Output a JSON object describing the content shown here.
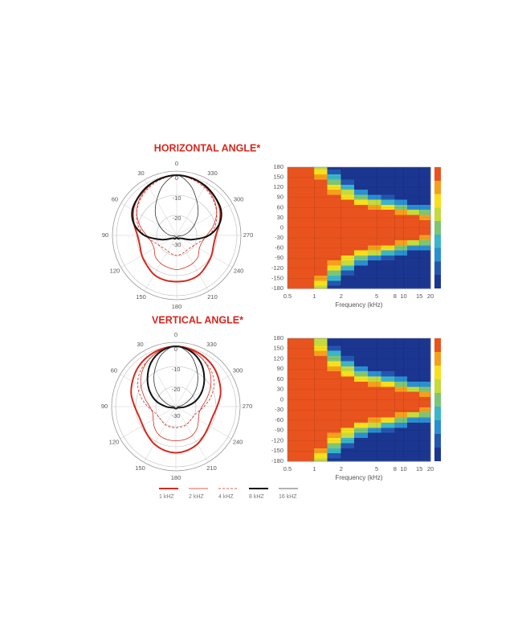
{
  "legend": [
    {
      "name": "1 kHZ",
      "color": "#d42a1e",
      "width": 2,
      "dash": false
    },
    {
      "name": "2 kHZ",
      "color": "#d42a1e",
      "width": 0.8,
      "dash": false
    },
    {
      "name": "4 kHZ",
      "color": "#d42a1e",
      "width": 0.8,
      "dash": true
    },
    {
      "name": "8 kHZ",
      "color": "#111111",
      "width": 2,
      "dash": false
    },
    {
      "name": "16 kHZ",
      "color": "#333333",
      "width": 0.8,
      "dash": false
    }
  ],
  "colorscale": {
    "levels": [
      0,
      -3,
      -6,
      -9,
      -12,
      -15,
      -18,
      -21,
      -24
    ],
    "colors": [
      "#e9531e",
      "#f5a01c",
      "#f8df1c",
      "#c5da3c",
      "#7cc576",
      "#3bb5c7",
      "#2a8fd0",
      "#2356b0",
      "#1b3690"
    ]
  },
  "chart_data": [
    {
      "type": "polar",
      "title": "HORIZONTAL ANGLE*",
      "angles": [
        0,
        15,
        30,
        45,
        60,
        75,
        90,
        105,
        120,
        135,
        150,
        165,
        180,
        195,
        210,
        225,
        240,
        255,
        270,
        285,
        300,
        315,
        330,
        345
      ],
      "theta_ticks": [
        0,
        30,
        60,
        90,
        120,
        150,
        180,
        210,
        240,
        270,
        300,
        330
      ],
      "rlim": [
        -30,
        2
      ],
      "rticks": [
        0,
        -10,
        -20,
        -30
      ],
      "series": [
        {
          "values": [
            0,
            -0.5,
            -1.5,
            -3,
            -5,
            -8,
            -10.5,
            -11,
            -10,
            -9,
            -7.5,
            -7,
            -7,
            -7,
            -7.5,
            -9,
            -10,
            -11,
            -10.5,
            -8,
            -5,
            -3,
            -1.5,
            -0.5
          ]
        },
        {
          "values": [
            0,
            -0.5,
            -2,
            -4,
            -7,
            -11,
            -15,
            -17,
            -17,
            -15,
            -14,
            -13.5,
            -13,
            -13.5,
            -14,
            -15,
            -17,
            -17,
            -15,
            -11,
            -7,
            -4,
            -2,
            -0.5
          ]
        },
        {
          "values": [
            0,
            -1,
            -2.5,
            -4.5,
            -7,
            -10,
            -14,
            -18,
            -20,
            -21,
            -21,
            -20.5,
            -20,
            -20.5,
            -21,
            -21,
            -20,
            -18,
            -14,
            -10,
            -7,
            -4.5,
            -2.5,
            -1
          ]
        },
        {
          "values": [
            0,
            -0.5,
            -1.5,
            -3,
            -4.5,
            -8,
            -14,
            -22,
            -27,
            -28,
            -28,
            -28.5,
            -29,
            -28.5,
            -28,
            -28,
            -27,
            -22,
            -14,
            -8,
            -4.5,
            -3,
            -1.5,
            -0.5
          ]
        },
        {
          "values": [
            0,
            -4,
            -10,
            -15,
            -20,
            -24,
            -27,
            -29,
            -29,
            -29,
            -29,
            -29,
            -29,
            -29,
            -29,
            -29,
            -29,
            -29,
            -27,
            -24,
            -20,
            -15,
            -10,
            -4
          ]
        }
      ]
    },
    {
      "type": "heatmap",
      "x_label": "Frequency (kHz)",
      "xlim": [
        0.5,
        20
      ],
      "xticks": [
        0.5,
        1,
        2,
        5,
        8,
        10,
        15,
        20
      ],
      "log_x": true,
      "ylim": [
        -180,
        180
      ],
      "yticks": [
        180,
        150,
        120,
        90,
        60,
        30,
        0,
        -30,
        -60,
        -90,
        -120,
        -150,
        -180
      ],
      "x_edges": [
        0.5,
        0.7,
        1,
        1.4,
        2,
        2.8,
        4,
        5.6,
        8,
        11,
        15,
        20
      ],
      "y": [
        180,
        165,
        150,
        135,
        120,
        105,
        90,
        75,
        60,
        45,
        30,
        15,
        0,
        -15,
        -30,
        -45,
        -60,
        -75,
        -90,
        -105,
        -120,
        -135,
        -150,
        -165,
        -180
      ],
      "z": [
        [
          0,
          0,
          -9,
          -24,
          -24,
          -24,
          -24,
          -24,
          -24,
          -24,
          -24
        ],
        [
          0,
          0,
          -6,
          -21,
          -24,
          -24,
          -24,
          -24,
          -24,
          -24,
          -24
        ],
        [
          0,
          0,
          -3,
          -15,
          -24,
          -24,
          -24,
          -24,
          -24,
          -24,
          -24
        ],
        [
          0,
          0,
          0,
          -12,
          -21,
          -24,
          -24,
          -24,
          -24,
          -24,
          -24
        ],
        [
          0,
          0,
          0,
          -6,
          -15,
          -24,
          -24,
          -24,
          -24,
          -24,
          -24
        ],
        [
          0,
          0,
          0,
          -3,
          -9,
          -18,
          -24,
          -24,
          -24,
          -24,
          -24
        ],
        [
          0,
          0,
          0,
          0,
          -6,
          -12,
          -18,
          -21,
          -24,
          -24,
          -24
        ],
        [
          0,
          0,
          0,
          0,
          0,
          -6,
          -9,
          -15,
          -18,
          -24,
          -24
        ],
        [
          0,
          0,
          0,
          0,
          0,
          0,
          -3,
          -6,
          -12,
          -18,
          -18
        ],
        [
          0,
          0,
          0,
          0,
          0,
          0,
          0,
          0,
          -3,
          -9,
          -12
        ],
        [
          0,
          0,
          0,
          0,
          0,
          0,
          0,
          0,
          0,
          0,
          -3
        ],
        [
          0,
          0,
          0,
          0,
          0,
          0,
          0,
          0,
          0,
          0,
          0
        ],
        [
          0,
          0,
          0,
          0,
          0,
          0,
          0,
          0,
          0,
          0,
          0
        ],
        [
          0,
          0,
          0,
          0,
          0,
          0,
          0,
          0,
          0,
          0,
          0
        ],
        [
          0,
          0,
          0,
          0,
          0,
          0,
          0,
          0,
          0,
          0,
          -3
        ],
        [
          0,
          0,
          0,
          0,
          0,
          0,
          0,
          0,
          -3,
          -9,
          -12
        ],
        [
          0,
          0,
          0,
          0,
          0,
          0,
          -3,
          -6,
          -12,
          -18,
          -18
        ],
        [
          0,
          0,
          0,
          0,
          0,
          -6,
          -9,
          -15,
          -18,
          -24,
          -24
        ],
        [
          0,
          0,
          0,
          0,
          -6,
          -12,
          -18,
          -21,
          -24,
          -24,
          -24
        ],
        [
          0,
          0,
          0,
          -3,
          -9,
          -18,
          -24,
          -24,
          -24,
          -24,
          -24
        ],
        [
          0,
          0,
          0,
          -6,
          -15,
          -24,
          -24,
          -24,
          -24,
          -24,
          -24
        ],
        [
          0,
          0,
          0,
          -12,
          -21,
          -24,
          -24,
          -24,
          -24,
          -24,
          -24
        ],
        [
          0,
          0,
          -3,
          -15,
          -24,
          -24,
          -24,
          -24,
          -24,
          -24,
          -24
        ],
        [
          0,
          0,
          -6,
          -21,
          -24,
          -24,
          -24,
          -24,
          -24,
          -24,
          -24
        ],
        [
          0,
          0,
          -9,
          -24,
          -24,
          -24,
          -24,
          -24,
          -24,
          -24,
          -24
        ]
      ]
    },
    {
      "type": "polar",
      "title": "VERTICAL ANGLE*",
      "angles": [
        0,
        15,
        30,
        45,
        60,
        75,
        90,
        105,
        120,
        135,
        150,
        165,
        180,
        195,
        210,
        225,
        240,
        255,
        270,
        285,
        300,
        315,
        330,
        345
      ],
      "theta_ticks": [
        0,
        30,
        60,
        90,
        120,
        150,
        180,
        210,
        240,
        270,
        300,
        330
      ],
      "rlim": [
        -30,
        2
      ],
      "rticks": [
        0,
        -10,
        -20,
        -30
      ],
      "series": [
        {
          "values": [
            0,
            -0.5,
            -1.5,
            -3,
            -5,
            -7,
            -9.5,
            -11,
            -11,
            -10,
            -8.5,
            -7.5,
            -7,
            -7.5,
            -8.5,
            -10,
            -11,
            -11,
            -9.5,
            -7,
            -5,
            -3,
            -1.5,
            -0.5
          ]
        },
        {
          "values": [
            0,
            -1,
            -3,
            -6,
            -10,
            -14,
            -17,
            -18,
            -17,
            -15,
            -13.5,
            -13,
            -13,
            -13,
            -13.5,
            -15,
            -17,
            -18,
            -17,
            -14,
            -10,
            -6,
            -3,
            -1
          ]
        },
        {
          "values": [
            0,
            -1,
            -3,
            -5,
            -8,
            -12,
            -16,
            -19,
            -20,
            -20,
            -19.5,
            -19.5,
            -19.5,
            -19.5,
            -19.5,
            -20,
            -20,
            -19,
            -16,
            -12,
            -8,
            -5,
            -3,
            -1
          ]
        },
        {
          "values": [
            0,
            -1.5,
            -5,
            -10,
            -15,
            -20,
            -25,
            -28,
            -29,
            -29,
            -29,
            -29,
            -29,
            -29,
            -29,
            -29,
            -29,
            -28,
            -25,
            -20,
            -15,
            -10,
            -5,
            -1.5
          ]
        },
        {
          "values": [
            0,
            -3,
            -9,
            -15,
            -21,
            -26,
            -29,
            -29,
            -29,
            -29,
            -29,
            -29,
            -29,
            -29,
            -29,
            -29,
            -29,
            -29,
            -29,
            -26,
            -21,
            -15,
            -9,
            -3
          ]
        }
      ]
    },
    {
      "type": "heatmap",
      "x_label": "Frequency (kHz)",
      "xlim": [
        0.5,
        20
      ],
      "xticks": [
        0.5,
        1,
        2,
        5,
        8,
        10,
        15,
        20
      ],
      "log_x": true,
      "ylim": [
        -180,
        180
      ],
      "yticks": [
        180,
        150,
        120,
        90,
        60,
        30,
        0,
        -30,
        -60,
        -90,
        -120,
        -150,
        -180
      ],
      "x_edges": [
        0.5,
        0.7,
        1,
        1.4,
        2,
        2.8,
        4,
        5.6,
        8,
        11,
        15,
        20
      ],
      "y": [
        180,
        165,
        150,
        135,
        120,
        105,
        90,
        75,
        60,
        45,
        30,
        15,
        0,
        -15,
        -30,
        -45,
        -60,
        -75,
        -90,
        -105,
        -120,
        -135,
        -150,
        -165,
        -180
      ],
      "z": [
        [
          0,
          0,
          -9,
          -24,
          -24,
          -24,
          -24,
          -24,
          -24,
          -24,
          -24
        ],
        [
          0,
          0,
          -9,
          -24,
          -24,
          -24,
          -24,
          -24,
          -24,
          -24,
          -24
        ],
        [
          0,
          0,
          -6,
          -21,
          -24,
          -24,
          -24,
          -24,
          -24,
          -24,
          -24
        ],
        [
          0,
          0,
          -3,
          -15,
          -24,
          -24,
          -24,
          -24,
          -24,
          -24,
          -24
        ],
        [
          0,
          0,
          0,
          -12,
          -21,
          -24,
          -24,
          -24,
          -24,
          -24,
          -24
        ],
        [
          0,
          0,
          0,
          -6,
          -15,
          -24,
          -24,
          -24,
          -24,
          -24,
          -24
        ],
        [
          0,
          0,
          0,
          -3,
          -9,
          -18,
          -24,
          -24,
          -24,
          -24,
          -24
        ],
        [
          0,
          0,
          0,
          0,
          -6,
          -12,
          -18,
          -21,
          -24,
          -24,
          -24
        ],
        [
          0,
          0,
          0,
          0,
          0,
          -6,
          -9,
          -15,
          -18,
          -24,
          -24
        ],
        [
          0,
          0,
          0,
          0,
          0,
          0,
          -3,
          -6,
          -12,
          -18,
          -18
        ],
        [
          0,
          0,
          0,
          0,
          0,
          0,
          0,
          0,
          -3,
          -9,
          -12
        ],
        [
          0,
          0,
          0,
          0,
          0,
          0,
          0,
          0,
          0,
          0,
          -3
        ],
        [
          0,
          0,
          0,
          0,
          0,
          0,
          0,
          0,
          0,
          0,
          0
        ],
        [
          0,
          0,
          0,
          0,
          0,
          0,
          0,
          0,
          0,
          0,
          0
        ],
        [
          0,
          0,
          0,
          0,
          0,
          0,
          0,
          0,
          0,
          0,
          -3
        ],
        [
          0,
          0,
          0,
          0,
          0,
          0,
          0,
          0,
          -3,
          -9,
          -12
        ],
        [
          0,
          0,
          0,
          0,
          0,
          0,
          -3,
          -6,
          -12,
          -18,
          -18
        ],
        [
          0,
          0,
          0,
          0,
          0,
          -6,
          -9,
          -15,
          -18,
          -24,
          -24
        ],
        [
          0,
          0,
          0,
          0,
          -6,
          -12,
          -18,
          -21,
          -24,
          -24,
          -24
        ],
        [
          0,
          0,
          0,
          -3,
          -9,
          -18,
          -24,
          -24,
          -24,
          -24,
          -24
        ],
        [
          0,
          0,
          0,
          -6,
          -15,
          -24,
          -24,
          -24,
          -24,
          -24,
          -24
        ],
        [
          0,
          0,
          0,
          -12,
          -21,
          -24,
          -24,
          -24,
          -24,
          -24,
          -24
        ],
        [
          0,
          0,
          -3,
          -15,
          -24,
          -24,
          -24,
          -24,
          -24,
          -24,
          -24
        ],
        [
          0,
          0,
          -6,
          -21,
          -24,
          -24,
          -24,
          -24,
          -24,
          -24,
          -24
        ],
        [
          0,
          0,
          -9,
          -24,
          -24,
          -24,
          -24,
          -24,
          -24,
          -24,
          -24
        ]
      ]
    }
  ]
}
